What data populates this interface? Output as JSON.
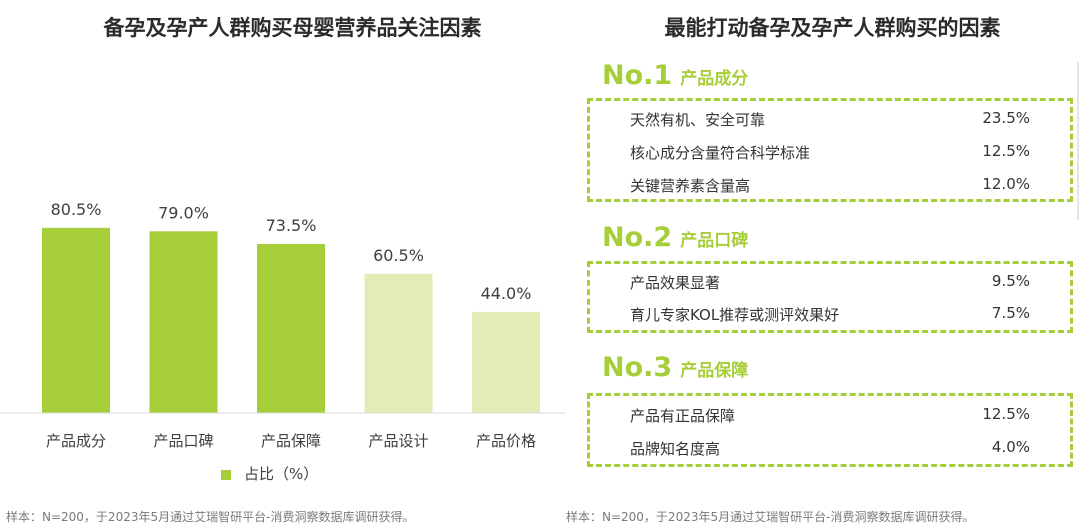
{
  "left": {
    "title": "备孕及孕产人群购买母婴营养品关注因素",
    "legend_label": "占比（%）",
    "source": "样本：N=200，于2023年5月通过艾瑞智研平台-消费洞察数据库调研获得。"
  },
  "chart_data": {
    "type": "bar",
    "title": "备孕及孕产人群购买母婴营养品关注因素",
    "categories": [
      "产品成分",
      "产品口碑",
      "产品保障",
      "产品设计",
      "产品价格"
    ],
    "series": [
      {
        "name": "占比（%）",
        "values": [
          80.5,
          79.0,
          73.5,
          60.5,
          44.0
        ]
      }
    ],
    "data_labels": [
      "80.5%",
      "79.0%",
      "73.5%",
      "60.5%",
      "44.0%"
    ],
    "ylim": [
      0,
      100
    ],
    "grid": false,
    "legend": "bottom",
    "colors": {
      "highlight": "#a6ce39",
      "muted": "#e2edb5"
    },
    "highlighted_count": 3
  },
  "right": {
    "title": "最能打动备孕及孕产人群购买的因素",
    "source": "样本：N=200，于2023年5月通过艾瑞智研平台-消费洞察数据库调研获得。",
    "ranks": [
      {
        "no": "No.1",
        "name": "产品成分",
        "items": [
          {
            "label": "天然有机、安全可靠",
            "value": "23.5%"
          },
          {
            "label": "核心成分含量符合科学标准",
            "value": "12.5%"
          },
          {
            "label": "关键营养素含量高",
            "value": "12.0%"
          }
        ]
      },
      {
        "no": "No.2",
        "name": "产品口碑",
        "items": [
          {
            "label": "产品效果显著",
            "value": "9.5%"
          },
          {
            "label": "育儿专家KOL推荐或测评效果好",
            "value": "7.5%"
          }
        ]
      },
      {
        "no": "No.3",
        "name": "产品保障",
        "items": [
          {
            "label": "产品有正品保障",
            "value": "12.5%"
          },
          {
            "label": "品牌知名度高",
            "value": "4.0%"
          }
        ]
      }
    ]
  },
  "accent_color": "#a6ce39"
}
